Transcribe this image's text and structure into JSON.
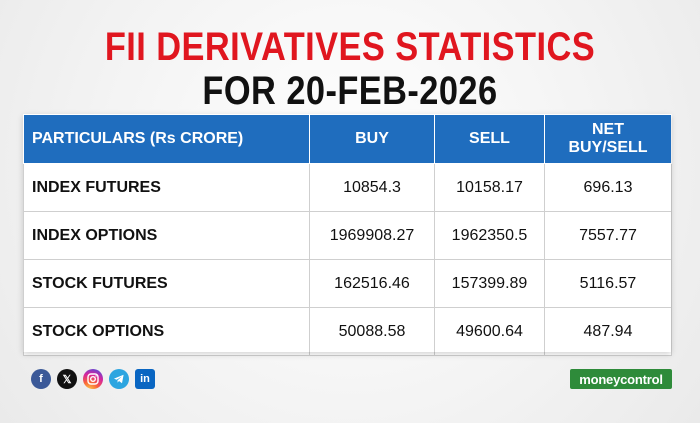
{
  "header": {
    "title_line1": "FII DERIVATIVES STATISTICS",
    "title_line2": "FOR  20-FEB-2026"
  },
  "table": {
    "columns": [
      "PARTICULARS (Rs CRORE)",
      "BUY",
      "SELL",
      "NET BUY/SELL"
    ],
    "rows": [
      [
        "INDEX FUTURES",
        "10854.3",
        "10158.17",
        "696.13"
      ],
      [
        "INDEX OPTIONS",
        "1969908.27",
        "1962350.5",
        "7557.77"
      ],
      [
        "STOCK FUTURES",
        "162516.46",
        "157399.89",
        "5116.57"
      ],
      [
        "STOCK OPTIONS",
        "50088.58",
        "49600.64",
        "487.94"
      ]
    ]
  },
  "footer": {
    "social_icons": [
      "facebook-icon",
      "x-icon",
      "instagram-icon",
      "telegram-icon",
      "linkedin-icon"
    ],
    "brand_logo": "moneycontrol"
  },
  "colors": {
    "title_red": "#e0161f",
    "header_blue": "#1f6dbe",
    "brand_green": "#2e8b3a"
  }
}
